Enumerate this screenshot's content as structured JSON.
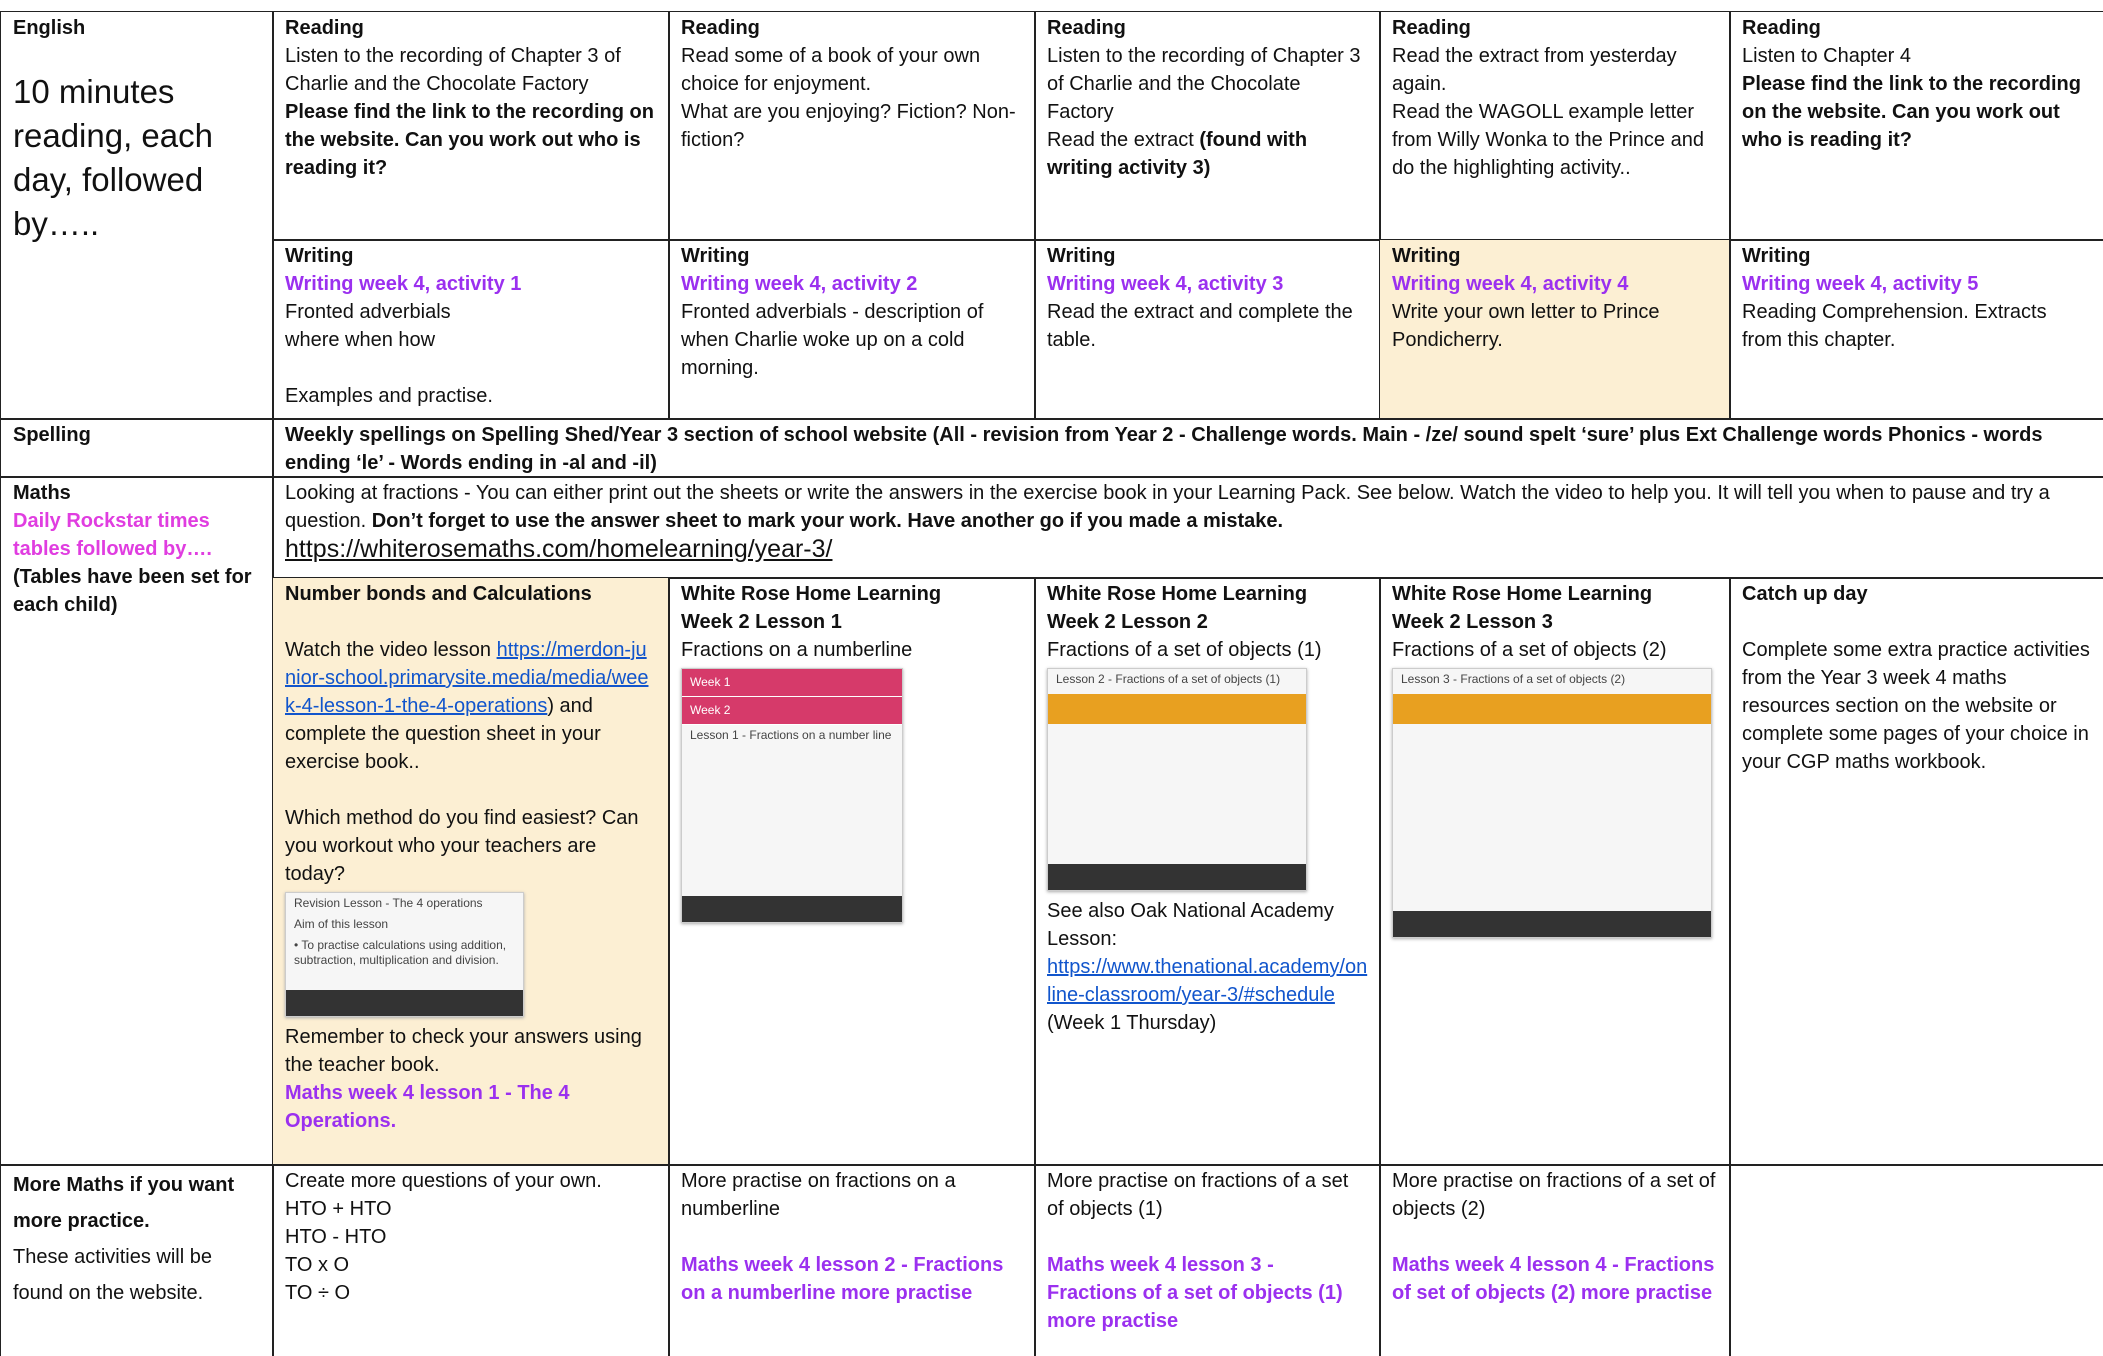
{
  "english": {
    "label": [
      [
        {
          "text": "English",
          "style": "bold"
        }
      ],
      [
        {
          "text": "10 minutes reading, each day, followed by…..",
          "style": "large"
        }
      ]
    ],
    "reading": [
      [
        [
          {
            "text": "Reading",
            "style": "bold"
          }
        ],
        [
          "Listen to the recording of Chapter 3 of Charlie and the Chocolate Factory"
        ],
        [
          {
            "text": "Please find the link to the recording on the website. Can you work out who is reading it?",
            "style": "bold"
          }
        ]
      ],
      [
        [
          {
            "text": "Reading",
            "style": "bold"
          }
        ],
        [
          "Read some of a book of your own choice for enjoyment."
        ],
        [
          "What are you enjoying? Fiction? Non-fiction?"
        ]
      ],
      [
        [
          {
            "text": "Reading",
            "style": "bold"
          }
        ],
        [
          "Listen to the recording of Chapter 3 of Charlie and the Chocolate Factory"
        ],
        [
          "Read the extract ",
          {
            "text": "(found with writing activity 3)",
            "style": "bold"
          }
        ]
      ],
      [
        [
          {
            "text": "Reading",
            "style": "bold"
          }
        ],
        [
          "Read the extract from yesterday again."
        ],
        [
          "Read the WAGOLL example letter from Willy Wonka to the Prince and do the highlighting activity.."
        ]
      ],
      [
        [
          {
            "text": "Reading",
            "style": "bold"
          }
        ],
        [
          "Listen to Chapter 4"
        ],
        [
          {
            "text": "Please find the link to the recording on the website. Can you work out who is reading it?",
            "style": "bold"
          }
        ]
      ]
    ],
    "writing": [
      [
        [
          {
            "text": "Writing",
            "style": "bold"
          }
        ],
        [
          {
            "text": "Writing week 4, activity 1",
            "style": "purple"
          }
        ],
        [
          "Fronted adverbials"
        ],
        [
          "where when how"
        ],
        [
          "Examples and practise."
        ]
      ],
      [
        [
          {
            "text": "Writing",
            "style": "bold"
          }
        ],
        [
          {
            "text": "Writing week 4, activity 2",
            "style": "purple"
          }
        ],
        [
          "Fronted adverbials - description of when Charlie woke up on a cold morning."
        ]
      ],
      [
        [
          {
            "text": "Writing",
            "style": "bold"
          }
        ],
        [
          {
            "text": "Writing week 4, activity 3",
            "style": "purple"
          }
        ],
        [
          "Read the extract and complete the table."
        ]
      ],
      [
        [
          {
            "text": "Writing",
            "style": "bold"
          }
        ],
        [
          {
            "text": "Writing week 4, activity 4",
            "style": "purple"
          }
        ],
        [
          "Write your own letter to Prince Pondicherry."
        ]
      ],
      [
        [
          {
            "text": "Writing",
            "style": "bold"
          }
        ],
        [
          {
            "text": "Writing week 4, activity 5",
            "style": "purple"
          }
        ],
        [
          "Reading Comprehension.  Extracts from this chapter."
        ]
      ]
    ]
  },
  "spelling": {
    "label": [
      [
        {
          "text": "Spelling",
          "style": "bold"
        }
      ]
    ],
    "content": [
      [
        {
          "text": "Weekly spellings on Spelling Shed/Year 3 section of school website     (All - revision from Year 2 - Challenge words.  Main - /ze/ sound spelt ‘sure’  plus  Ext Challenge words Phonics - words ending ‘le’ - Words ending in -al and -il)",
          "style": "bold"
        }
      ]
    ]
  },
  "maths": {
    "label": [
      [
        {
          "text": "Maths",
          "style": "bold"
        }
      ],
      [
        {
          "text": "Daily Rockstar times tables followed by….",
          "style": "magenta"
        }
      ],
      [
        {
          "text": "(Tables have been set for each child)",
          "style": "bold"
        }
      ]
    ],
    "intro": [
      [
        "Looking at fractions - You can either print out the sheets or write the answers in the exercise book in your Learning Pack.  See below. Watch the video to help you.  It will tell you when to pause and try a question.  ",
        {
          "text": "Don’t forget to use the answer sheet to mark your work.  Have another go if you made a mistake.",
          "style": "bold"
        }
      ],
      [
        {
          "text": "https://whiterosemaths.com/homelearning/year-3/",
          "style": "url"
        }
      ]
    ],
    "lessons": [
      [
        [
          {
            "text": "Number bonds and Calculations",
            "style": "bold"
          }
        ],
        [
          "Watch the video lesson ",
          {
            "text": "https://merdon-junior-school.primarysite.media/media/week-4-lesson-1-the-4-operations",
            "style": "link"
          },
          ") and complete the question sheet in your exercise book.."
        ],
        [
          " Which method do you find easiest? Can you workout who your teachers are today?"
        ],
        {
          "thumb": [
            "Revision Lesson - The 4 operations",
            "Aim of this lesson",
            "• To practise calculations using addition, subtraction, multiplication and division."
          ]
        },
        [
          "Remember to check your answers using the teacher book."
        ],
        [
          {
            "text": "Maths week 4 lesson 1 - The 4 Operations.",
            "style": "purple"
          }
        ]
      ],
      [
        [
          {
            "text": "White Rose Home Learning",
            "style": "bold"
          }
        ],
        [
          {
            "text": "Week 2 Lesson 1",
            "style": "bold"
          }
        ],
        [
          "Fractions on a numberline"
        ],
        {
          "thumb": [
            "Week 1",
            "Week 2",
            "Lesson 1 - Fractions on a number line"
          ]
        }
      ],
      [
        [
          {
            "text": "White Rose Home Learning",
            "style": "bold"
          }
        ],
        [
          {
            "text": "Week 2 Lesson 2",
            "style": "bold"
          }
        ],
        [
          "Fractions of a set of objects (1)"
        ],
        {
          "thumb": [
            "Lesson 2 - Fractions of a set of objects (1)"
          ]
        },
        [
          "See also Oak National Academy Lesson:"
        ],
        [
          {
            "text": "https://www.thenational.academy/online-classroom/year-3/#schedule",
            "style": "link"
          }
        ],
        [
          "(Week 1 Thursday)"
        ]
      ],
      [
        [
          {
            "text": "White Rose Home Learning",
            "style": "bold"
          }
        ],
        [
          {
            "text": "Week 2 Lesson 3",
            "style": "bold"
          }
        ],
        [
          "Fractions of a set of objects (2)"
        ],
        {
          "thumb": [
            "Lesson 3 - Fractions of a set of objects (2)"
          ]
        }
      ],
      [
        [
          {
            "text": "Catch up day",
            "style": "bold"
          }
        ],
        [
          "Complete some extra practice activities from the Year 3 week 4 maths resources section on the website or complete some pages of your choice in your CGP maths workbook."
        ]
      ]
    ]
  },
  "more_maths": {
    "label": [
      [
        {
          "text": "More Maths if you want more practice.",
          "style": "bold"
        }
      ],
      [
        "These activities will be found on the website."
      ]
    ],
    "cells": [
      [
        [
          "Create more questions of your own."
        ],
        [
          "HTO + HTO"
        ],
        [
          "HTO - HTO"
        ],
        [
          "TO x O"
        ],
        [
          "TO ÷ O"
        ]
      ],
      [
        [
          "More practise on fractions on a numberline"
        ],
        [
          {
            "text": "Maths week 4 lesson 2 - Fractions on a numberline more practise",
            "style": "purple"
          }
        ]
      ],
      [
        [
          "More practise on fractions of a set of objects (1)"
        ],
        [
          {
            "text": "Maths week 4 lesson 3 - Fractions of a set of objects (1) more practise",
            "style": "purple"
          }
        ]
      ],
      [
        [
          "More practise on fractions of a set of objects (2)"
        ],
        [
          {
            "text": "Maths week 4 lesson 4 - Fractions of set of objects (2) more practise",
            "style": "purple"
          }
        ]
      ],
      []
    ]
  }
}
